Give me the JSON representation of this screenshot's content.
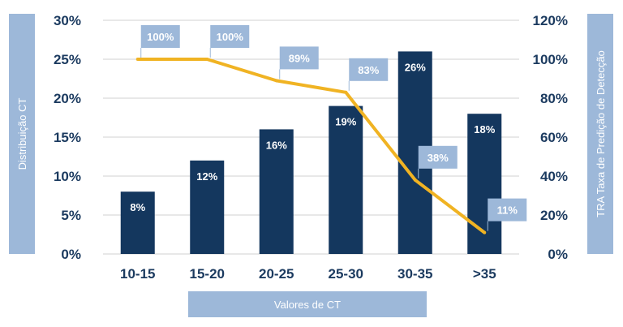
{
  "chart_data": {
    "type": "bar",
    "categories": [
      "10-15",
      "15-20",
      "20-25",
      "25-30",
      "30-35",
      ">35"
    ],
    "series": [
      {
        "type": "bar",
        "axis": "left",
        "values": [
          8,
          12,
          16,
          19,
          26,
          18
        ],
        "labels": [
          "8%",
          "12%",
          "16%",
          "19%",
          "26%",
          "18%"
        ]
      },
      {
        "type": "line",
        "axis": "right",
        "values": [
          100,
          100,
          89,
          83,
          38,
          11
        ],
        "labels": [
          "100%",
          "100%",
          "89%",
          "83%",
          "38%",
          "11%"
        ]
      }
    ],
    "xlabel": "Valores de CT",
    "ylabel_left": "Distribuição CT",
    "ylabel_right": "TRA Taxa de Predição de Detecção",
    "ylim_left": [
      0,
      30
    ],
    "ylim_right": [
      0,
      120
    ],
    "yticks_left": [
      "0%",
      "5%",
      "10%",
      "15%",
      "20%",
      "25%",
      "30%"
    ],
    "yticks_right": [
      "0%",
      "20%",
      "40%",
      "60%",
      "80%",
      "100%",
      "120%"
    ],
    "grid": true,
    "colors": {
      "bar": "#14375e",
      "line": "#f0b323",
      "label_box": "#9db8d9",
      "axis_box": "#9db8d9",
      "text": "#1b3a5f",
      "grid": "#d0d0d0"
    }
  }
}
